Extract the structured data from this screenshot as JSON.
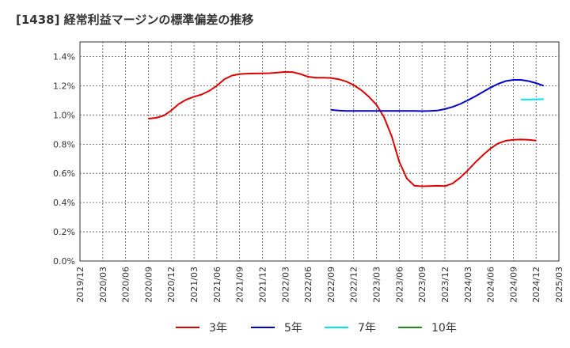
{
  "chart_data": {
    "type": "line",
    "title": "[1438]  経常利益マージンの標準偏差の推移",
    "xlabel": "",
    "ylabel": "",
    "ylim": [
      0,
      1.5
    ],
    "grid": true,
    "legend_position": "bottom",
    "x_ticks": [
      "2019/12",
      "2020/03",
      "2020/06",
      "2020/09",
      "2020/12",
      "2021/03",
      "2021/06",
      "2021/09",
      "2021/12",
      "2022/03",
      "2022/06",
      "2022/09",
      "2022/12",
      "2023/03",
      "2023/06",
      "2023/09",
      "2023/12",
      "2024/03",
      "2024/06",
      "2024/09",
      "2024/12",
      "2025/03"
    ],
    "y_ticks": [
      {
        "value": 0.0,
        "label": "0.0%"
      },
      {
        "value": 0.2,
        "label": "0.2%"
      },
      {
        "value": 0.4,
        "label": "0.4%"
      },
      {
        "value": 0.6,
        "label": "0.6%"
      },
      {
        "value": 0.8,
        "label": "0.8%"
      },
      {
        "value": 1.0,
        "label": "1.0%"
      },
      {
        "value": 1.2,
        "label": "1.2%"
      },
      {
        "value": 1.4,
        "label": "1.4%"
      }
    ],
    "series": [
      {
        "name": "3年",
        "color": "#dd0000",
        "points": [
          [
            9,
            0.975
          ],
          [
            10,
            0.98
          ],
          [
            11,
            0.995
          ],
          [
            12,
            1.03
          ],
          [
            13,
            1.075
          ],
          [
            14,
            1.105
          ],
          [
            15,
            1.125
          ],
          [
            16,
            1.14
          ],
          [
            17,
            1.165
          ],
          [
            18,
            1.2
          ],
          [
            19,
            1.245
          ],
          [
            20,
            1.27
          ],
          [
            21,
            1.28
          ],
          [
            22,
            1.283
          ],
          [
            23,
            1.284
          ],
          [
            24,
            1.285
          ],
          [
            25,
            1.286
          ],
          [
            26,
            1.29
          ],
          [
            27,
            1.295
          ],
          [
            28,
            1.293
          ],
          [
            29,
            1.28
          ],
          [
            30,
            1.262
          ],
          [
            31,
            1.255
          ],
          [
            32,
            1.255
          ],
          [
            33,
            1.253
          ],
          [
            34,
            1.245
          ],
          [
            35,
            1.23
          ],
          [
            36,
            1.205
          ],
          [
            37,
            1.17
          ],
          [
            38,
            1.125
          ],
          [
            39,
            1.07
          ],
          [
            40,
            0.985
          ],
          [
            41,
            0.855
          ],
          [
            42,
            0.68
          ],
          [
            43,
            0.565
          ],
          [
            44,
            0.515
          ],
          [
            45,
            0.512
          ],
          [
            46,
            0.513
          ],
          [
            47,
            0.515
          ],
          [
            48,
            0.513
          ],
          [
            49,
            0.53
          ],
          [
            50,
            0.57
          ],
          [
            51,
            0.62
          ],
          [
            52,
            0.675
          ],
          [
            53,
            0.725
          ],
          [
            54,
            0.77
          ],
          [
            55,
            0.805
          ],
          [
            56,
            0.823
          ],
          [
            57,
            0.83
          ],
          [
            58,
            0.832
          ],
          [
            59,
            0.83
          ],
          [
            60,
            0.825
          ]
        ]
      },
      {
        "name": "5年",
        "color": "#0000cc",
        "points": [
          [
            33,
            1.035
          ],
          [
            34,
            1.03
          ],
          [
            35,
            1.028
          ],
          [
            36,
            1.027
          ],
          [
            37,
            1.027
          ],
          [
            38,
            1.028
          ],
          [
            39,
            1.027
          ],
          [
            40,
            1.027
          ],
          [
            41,
            1.028
          ],
          [
            42,
            1.028
          ],
          [
            43,
            1.028
          ],
          [
            44,
            1.027
          ],
          [
            45,
            1.026
          ],
          [
            46,
            1.027
          ],
          [
            47,
            1.03
          ],
          [
            48,
            1.04
          ],
          [
            49,
            1.055
          ],
          [
            50,
            1.075
          ],
          [
            51,
            1.1
          ],
          [
            52,
            1.128
          ],
          [
            53,
            1.157
          ],
          [
            54,
            1.187
          ],
          [
            55,
            1.213
          ],
          [
            56,
            1.232
          ],
          [
            57,
            1.24
          ],
          [
            58,
            1.24
          ],
          [
            59,
            1.232
          ],
          [
            60,
            1.218
          ],
          [
            61,
            1.2
          ]
        ]
      },
      {
        "name": "7年",
        "color": "#00e5ee",
        "points": [
          [
            58,
            1.105
          ],
          [
            59,
            1.106
          ],
          [
            60,
            1.107
          ],
          [
            61,
            1.108
          ]
        ]
      },
      {
        "name": "10年",
        "color": "#228b22",
        "points": []
      }
    ]
  }
}
